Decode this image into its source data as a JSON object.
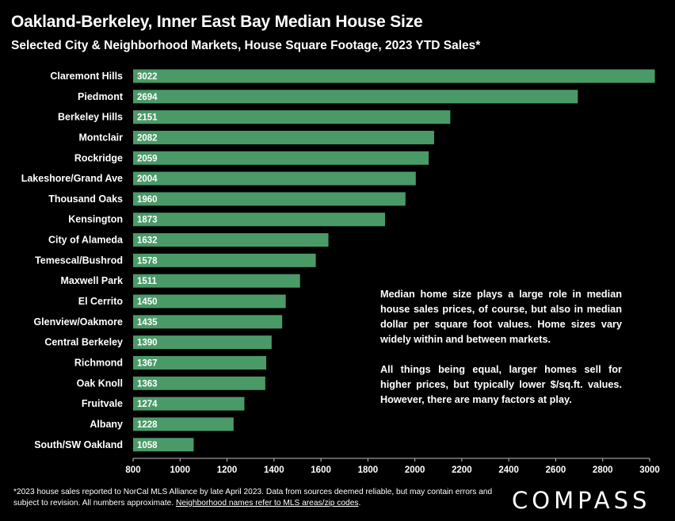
{
  "header": {
    "title": "Oakland-Berkeley, Inner East Bay Median House Size",
    "subtitle": "Selected City & Neighborhood Markets, House Square Footage, 2023 YTD Sales*"
  },
  "chart_data": {
    "type": "bar",
    "orientation": "horizontal",
    "title": "Oakland-Berkeley, Inner East Bay Median House Size",
    "subtitle": "Selected City & Neighborhood Markets, House Square Footage, 2023 YTD Sales*",
    "categories": [
      "Claremont Hills",
      "Piedmont",
      "Berkeley Hills",
      "Montclair",
      "Rockridge",
      "Lakeshore/Grand Ave",
      "Thousand Oaks",
      "Kensington",
      "City of Alameda",
      "Temescal/Bushrod",
      "Maxwell Park",
      "El Cerrito",
      "Glenview/Oakmore",
      "Central Berkeley",
      "Richmond",
      "Oak Knoll",
      "Fruitvale",
      "Albany",
      "South/SW Oakland"
    ],
    "values": [
      3022,
      2694,
      2151,
      2082,
      2059,
      2004,
      1960,
      1873,
      1632,
      1578,
      1511,
      1450,
      1435,
      1390,
      1367,
      1363,
      1274,
      1228,
      1058
    ],
    "xlim": [
      800,
      3000
    ],
    "xticks": [
      800,
      1000,
      1200,
      1400,
      1600,
      1800,
      2000,
      2200,
      2400,
      2600,
      2800,
      3000
    ],
    "bar_color": "#4a9a68",
    "grid": false,
    "legend": "none"
  },
  "note": {
    "p1": "Median home size plays a large role in median house sales prices, of course, but also in median dollar per square foot values. Home sizes vary widely within and between markets.",
    "p2": "All things being equal, larger homes sell for higher prices, but typically lower $/sq.ft. values. However, there are many factors at play."
  },
  "footer": {
    "text": "*2023 house sales reported to NorCal MLS Alliance by late April 2023. Data from sources deemed reliable, but may contain errors and subject to revision. All numbers approximate.",
    "link": "Neighborhood names refer to MLS areas/zip codes",
    "link_end": ".",
    "logo": "COMPASS"
  }
}
